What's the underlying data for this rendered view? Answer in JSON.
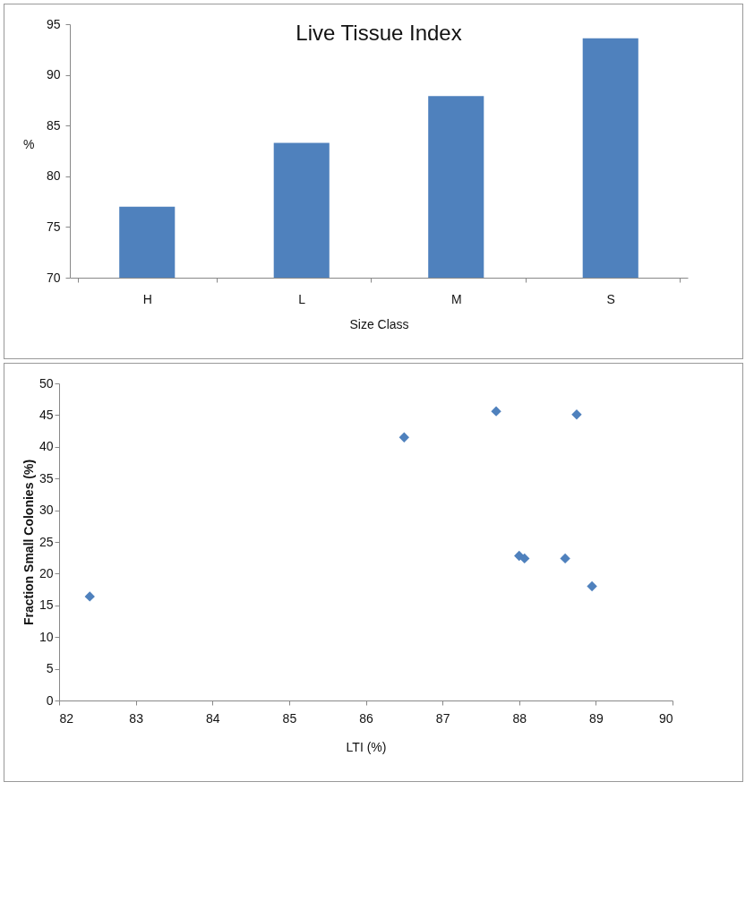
{
  "chart_data": [
    {
      "type": "bar",
      "title": "Live Tissue Index",
      "xlabel": "Size Class",
      "ylabel": "%",
      "categories": [
        "H",
        "L",
        "M",
        "S"
      ],
      "values": [
        77.0,
        83.3,
        87.9,
        93.6
      ],
      "color": "#4f81bd",
      "ylim": [
        70,
        95
      ],
      "yticks": [
        70,
        75,
        80,
        85,
        90,
        95
      ]
    },
    {
      "type": "scatter",
      "xlabel": "LTI (%)",
      "ylabel": "Fraction  Small Colonies (%)",
      "x": [
        82.4,
        86.5,
        87.7,
        88.0,
        88.07,
        88.6,
        88.75,
        88.95
      ],
      "values": [
        16.4,
        41.5,
        45.6,
        22.8,
        22.4,
        22.4,
        45.1,
        18.0
      ],
      "color": "#4f81bd",
      "marker": "diamond",
      "xlim": [
        82,
        90
      ],
      "xticks": [
        82,
        83,
        84,
        85,
        86,
        87,
        88,
        89,
        90
      ],
      "ylim": [
        0,
        50
      ],
      "yticks": [
        0,
        5,
        10,
        15,
        20,
        25,
        30,
        35,
        40,
        45,
        50
      ]
    }
  ]
}
